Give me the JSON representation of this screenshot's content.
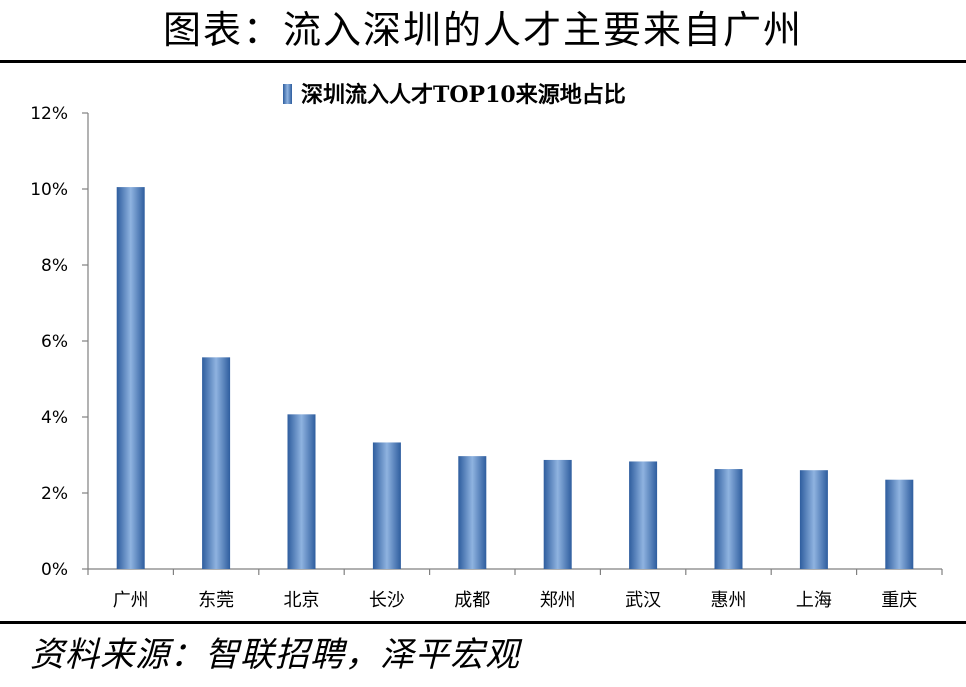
{
  "header": {
    "title": "图表：流入深圳的人才主要来自广州"
  },
  "footer": {
    "source": "资料来源：智联招聘，泽平宏观"
  },
  "colors": {
    "bar_dark": "#2e5d9e",
    "bar_light": "#8fb3e0",
    "axis": "#808080"
  },
  "chart_data": {
    "type": "bar",
    "title": "",
    "xlabel": "",
    "ylabel": "",
    "categories": [
      "广州",
      "东莞",
      "北京",
      "长沙",
      "成都",
      "郑州",
      "武汉",
      "惠州",
      "上海",
      "重庆"
    ],
    "series": [
      {
        "name": "深圳流入人才TOP10来源地占比",
        "values": [
          10.05,
          5.57,
          4.07,
          3.33,
          2.97,
          2.87,
          2.83,
          2.63,
          2.6,
          2.35
        ]
      }
    ],
    "ylim": [
      0,
      12
    ],
    "yticks": [
      0,
      2,
      4,
      6,
      8,
      10,
      12
    ],
    "ytick_labels": [
      "0%",
      "2%",
      "4%",
      "6%",
      "8%",
      "10%",
      "12%"
    ],
    "grid": false,
    "legend_position": "top-center"
  }
}
